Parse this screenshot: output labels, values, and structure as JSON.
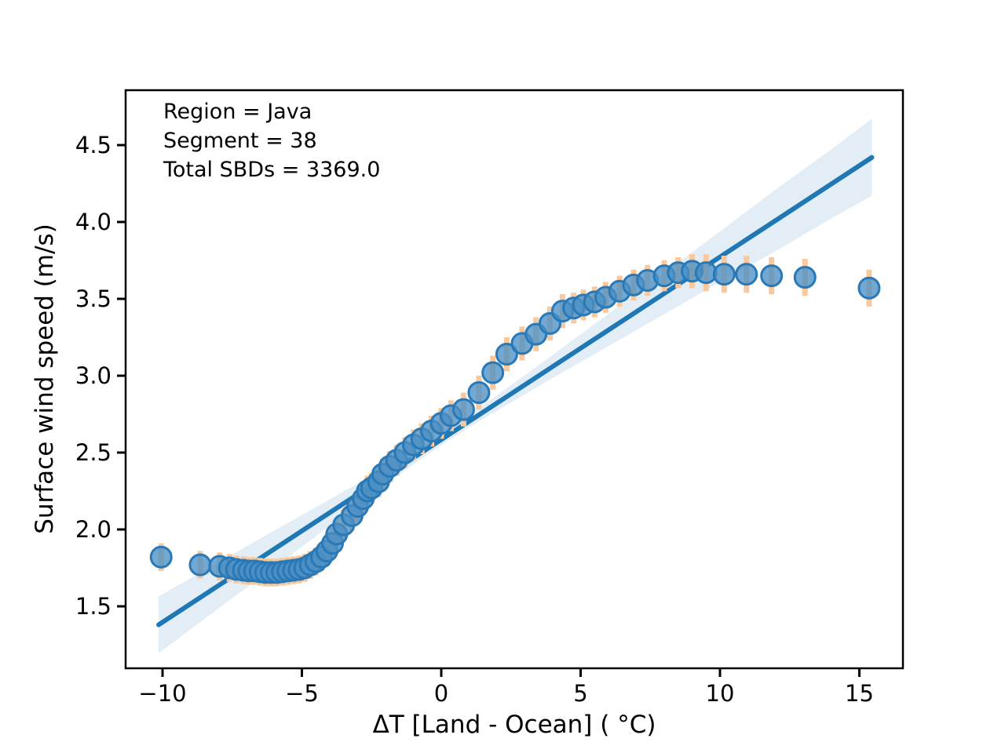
{
  "figure": {
    "annotation": {
      "lines": [
        "Region = Java",
        "Segment = 38",
        "Total SBDs = 3369.0"
      ]
    }
  },
  "chart_data": {
    "type": "scatter",
    "title": "",
    "xlabel": "ΔT [Land - Ocean] ( °C)",
    "ylabel": "Surface wind speed (m/s)",
    "xlim": [
      -11.3,
      16.6
    ],
    "ylim": [
      1.1,
      4.86
    ],
    "grid": false,
    "legend": "none",
    "xticks": [
      -10,
      -5,
      0,
      5,
      10,
      15
    ],
    "xtick_labels": [
      "−10",
      "−5",
      "0",
      "5",
      "10",
      "15"
    ],
    "yticks": [
      1.5,
      2.0,
      2.5,
      3.0,
      3.5,
      4.0,
      4.5
    ],
    "ytick_labels": [
      "1.5",
      "2.0",
      "2.5",
      "3.0",
      "3.5",
      "4.0",
      "4.5"
    ],
    "annotation_lines": [
      "Region = Java",
      "Segment = 38",
      "Total SBDs = 3369.0"
    ],
    "series": [
      {
        "name": "binned-means-scatter",
        "type": "scatter_with_yerr",
        "points_xye": [
          [
            -10.05,
            1.82,
            0.07
          ],
          [
            -8.65,
            1.77,
            0.07
          ],
          [
            -7.95,
            1.76,
            0.07
          ],
          [
            -7.6,
            1.75,
            0.07
          ],
          [
            -7.35,
            1.74,
            0.07
          ],
          [
            -7.1,
            1.735,
            0.07
          ],
          [
            -6.9,
            1.73,
            0.07
          ],
          [
            -6.7,
            1.73,
            0.07
          ],
          [
            -6.5,
            1.725,
            0.07
          ],
          [
            -6.3,
            1.72,
            0.07
          ],
          [
            -6.1,
            1.72,
            0.07
          ],
          [
            -5.9,
            1.72,
            0.07
          ],
          [
            -5.7,
            1.725,
            0.07
          ],
          [
            -5.5,
            1.73,
            0.07
          ],
          [
            -5.3,
            1.735,
            0.07
          ],
          [
            -5.1,
            1.74,
            0.07
          ],
          [
            -4.9,
            1.75,
            0.07
          ],
          [
            -4.7,
            1.77,
            0.07
          ],
          [
            -4.5,
            1.79,
            0.07
          ],
          [
            -4.3,
            1.82,
            0.07
          ],
          [
            -4.1,
            1.86,
            0.08
          ],
          [
            -3.9,
            1.91,
            0.08
          ],
          [
            -3.75,
            1.97,
            0.08
          ],
          [
            -3.5,
            2.03,
            0.08
          ],
          [
            -3.2,
            2.09,
            0.08
          ],
          [
            -3.0,
            2.15,
            0.08
          ],
          [
            -2.8,
            2.2,
            0.08
          ],
          [
            -2.65,
            2.25,
            0.08
          ],
          [
            -2.5,
            2.27,
            0.08
          ],
          [
            -2.25,
            2.31,
            0.08
          ],
          [
            -2.1,
            2.36,
            0.08
          ],
          [
            -1.85,
            2.41,
            0.08
          ],
          [
            -1.6,
            2.45,
            0.08
          ],
          [
            -1.3,
            2.5,
            0.08
          ],
          [
            -1.0,
            2.55,
            0.08
          ],
          [
            -0.7,
            2.59,
            0.08
          ],
          [
            -0.35,
            2.64,
            0.08
          ],
          [
            0.0,
            2.69,
            0.08
          ],
          [
            0.35,
            2.74,
            0.08
          ],
          [
            0.8,
            2.78,
            0.09
          ],
          [
            1.35,
            2.89,
            0.09
          ],
          [
            1.85,
            3.02,
            0.09
          ],
          [
            2.35,
            3.14,
            0.09
          ],
          [
            2.9,
            3.21,
            0.09
          ],
          [
            3.4,
            3.27,
            0.09
          ],
          [
            3.9,
            3.34,
            0.09
          ],
          [
            4.35,
            3.42,
            0.09
          ],
          [
            4.75,
            3.44,
            0.08
          ],
          [
            5.1,
            3.46,
            0.08
          ],
          [
            5.5,
            3.48,
            0.08
          ],
          [
            5.9,
            3.51,
            0.08
          ],
          [
            6.4,
            3.55,
            0.08
          ],
          [
            6.9,
            3.59,
            0.08
          ],
          [
            7.4,
            3.62,
            0.08
          ],
          [
            8.0,
            3.65,
            0.08
          ],
          [
            8.5,
            3.67,
            0.08
          ],
          [
            9.0,
            3.68,
            0.09
          ],
          [
            9.5,
            3.67,
            0.1
          ],
          [
            10.15,
            3.66,
            0.1
          ],
          [
            10.95,
            3.66,
            0.1
          ],
          [
            11.85,
            3.65,
            0.1
          ],
          [
            13.05,
            3.64,
            0.1
          ],
          [
            15.35,
            3.57,
            0.1
          ]
        ]
      },
      {
        "name": "linear-fit",
        "type": "line",
        "x": [
          -10.14,
          15.45
        ],
        "y": [
          1.38,
          4.42
        ]
      },
      {
        "name": "confidence-band",
        "type": "band",
        "points_x_lo_hi": [
          [
            -10.14,
            1.195,
            1.565
          ],
          [
            -8.0,
            1.485,
            1.785
          ],
          [
            -6.0,
            1.752,
            1.992
          ],
          [
            -4.0,
            2.025,
            2.195
          ],
          [
            -2.0,
            2.292,
            2.402
          ],
          [
            -1.0,
            2.424,
            2.508
          ],
          [
            0.0,
            2.548,
            2.622
          ],
          [
            1.0,
            2.664,
            2.744
          ],
          [
            2.0,
            2.773,
            2.873
          ],
          [
            4.0,
            2.985,
            3.135
          ],
          [
            6.0,
            3.193,
            3.403
          ],
          [
            8.0,
            3.401,
            3.671
          ],
          [
            10.0,
            3.608,
            3.938
          ],
          [
            12.0,
            3.811,
            4.211
          ],
          [
            14.0,
            4.024,
            4.474
          ],
          [
            15.45,
            4.171,
            4.671
          ]
        ]
      }
    ],
    "colors": {
      "marker_fill": "#4a8fc4",
      "marker_edge": "#2979b8",
      "error_bar": "#f8c99e",
      "regression_line": "#1f77b4",
      "confidence_band": "#1f77b4",
      "axes": "#000000",
      "background": "#ffffff"
    }
  }
}
